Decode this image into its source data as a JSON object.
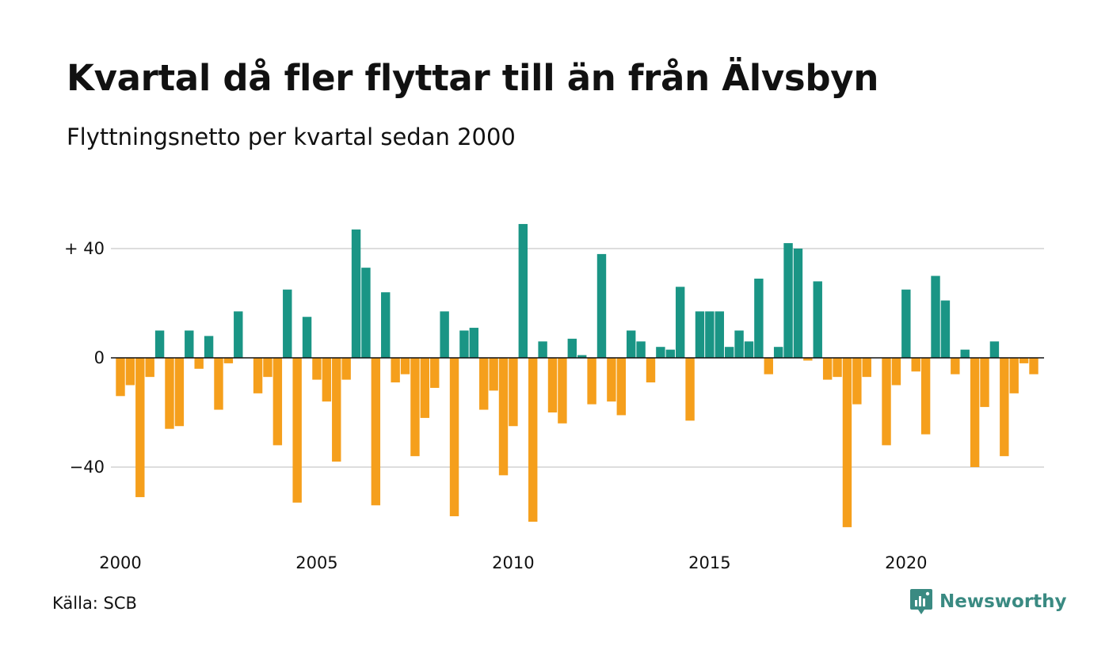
{
  "title": "Kvartal då fler flyttar till än från Älvsbyn",
  "subtitle": "Flyttningsnetto per kvartal sedan 2000",
  "source": "Källa: SCB",
  "brand": {
    "name": "Newsworthy",
    "icon": "newsworthy-logo-icon",
    "color": "#3a8a82"
  },
  "colors": {
    "positive": "#1a9585",
    "negative": "#f59f1c",
    "grid": "#dddddd",
    "zero": "#111111"
  },
  "chart_data": {
    "type": "bar",
    "title": "Kvartal då fler flyttar till än från Älvsbyn",
    "subtitle": "Flyttningsnetto per kvartal sedan 2000",
    "xlabel": "",
    "ylabel": "",
    "ylim": [
      -65,
      50
    ],
    "xlim": [
      2000,
      2023.75
    ],
    "grid": true,
    "y_ticks": [
      {
        "value": 40,
        "label": "+ 40"
      },
      {
        "value": 0,
        "label": "0"
      },
      {
        "value": -40,
        "label": "−40"
      }
    ],
    "x_ticks": [
      {
        "value": 2000,
        "label": "2000"
      },
      {
        "value": 2005,
        "label": "2005"
      },
      {
        "value": 2010,
        "label": "2010"
      },
      {
        "value": 2015,
        "label": "2015"
      },
      {
        "value": 2020,
        "label": "2020"
      }
    ],
    "x_start": 2000,
    "quarters_per_year": 4,
    "values": [
      -14,
      -10,
      -51,
      -7,
      10,
      -26,
      -25,
      10,
      -4,
      8,
      -19,
      -2,
      17,
      0,
      -13,
      -7,
      -32,
      25,
      -53,
      15,
      -8,
      -16,
      -38,
      -8,
      47,
      33,
      -54,
      24,
      -9,
      -6,
      -36,
      -22,
      -11,
      17,
      -58,
      10,
      11,
      -19,
      -12,
      -43,
      -25,
      49,
      -60,
      6,
      -20,
      -24,
      7,
      1,
      -17,
      38,
      -16,
      -21,
      10,
      6,
      -9,
      4,
      3,
      26,
      -23,
      17,
      17,
      17,
      4,
      10,
      6,
      29,
      -6,
      4,
      42,
      40,
      -1,
      28,
      -8,
      -7,
      -62,
      -17,
      -7,
      0,
      -32,
      -10,
      25,
      -5,
      -28,
      30,
      21,
      -6,
      3,
      -40,
      -18,
      6,
      -36,
      -13,
      -2,
      -6
    ]
  }
}
